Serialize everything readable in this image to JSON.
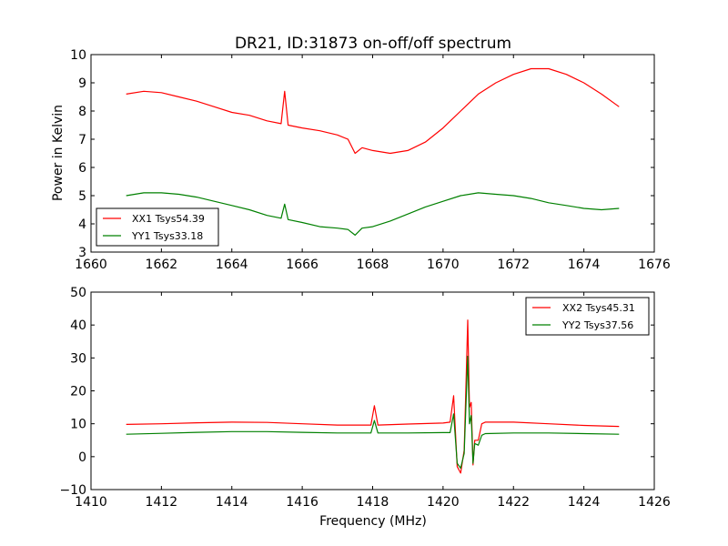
{
  "chart_data": [
    {
      "type": "line",
      "title": "DR21, ID:31873 on-off/off spectrum",
      "xlabel": "",
      "ylabel": "Power in Kelvin",
      "xlim": [
        1660,
        1676
      ],
      "ylim": [
        3,
        10
      ],
      "xticks": [
        "1660",
        "1662",
        "1664",
        "1666",
        "1668",
        "1670",
        "1672",
        "1674",
        "1676"
      ],
      "yticks": [
        "3",
        "4",
        "5",
        "6",
        "7",
        "8",
        "9",
        "10"
      ],
      "legend": "lower-left",
      "grid": false,
      "series": [
        {
          "name": "XX1 Tsys54.39",
          "color": "#ff0000",
          "x": [
            1661.0,
            1661.5,
            1662.0,
            1662.5,
            1663.0,
            1663.5,
            1664.0,
            1664.5,
            1665.0,
            1665.4,
            1665.5,
            1665.6,
            1666.0,
            1666.5,
            1667.0,
            1667.3,
            1667.5,
            1667.7,
            1668.0,
            1668.5,
            1669.0,
            1669.5,
            1670.0,
            1670.5,
            1671.0,
            1671.5,
            1672.0,
            1672.5,
            1673.0,
            1673.5,
            1674.0,
            1674.5,
            1675.0
          ],
          "y": [
            8.6,
            8.7,
            8.65,
            8.5,
            8.35,
            8.15,
            7.95,
            7.85,
            7.65,
            7.55,
            8.7,
            7.5,
            7.4,
            7.3,
            7.15,
            7.0,
            6.5,
            6.7,
            6.6,
            6.5,
            6.6,
            6.9,
            7.4,
            8.0,
            8.6,
            9.0,
            9.3,
            9.5,
            9.5,
            9.3,
            9.0,
            8.6,
            8.15
          ]
        },
        {
          "name": "YY1 Tsys33.18",
          "color": "#008000",
          "x": [
            1661.0,
            1661.5,
            1662.0,
            1662.5,
            1663.0,
            1663.5,
            1664.0,
            1664.5,
            1665.0,
            1665.4,
            1665.5,
            1665.6,
            1666.0,
            1666.5,
            1667.0,
            1667.3,
            1667.5,
            1667.7,
            1668.0,
            1668.5,
            1669.0,
            1669.5,
            1670.0,
            1670.5,
            1671.0,
            1671.5,
            1672.0,
            1672.5,
            1673.0,
            1673.5,
            1674.0,
            1674.5,
            1675.0
          ],
          "y": [
            5.0,
            5.1,
            5.1,
            5.05,
            4.95,
            4.8,
            4.65,
            4.5,
            4.3,
            4.2,
            4.7,
            4.15,
            4.05,
            3.9,
            3.85,
            3.8,
            3.6,
            3.85,
            3.9,
            4.1,
            4.35,
            4.6,
            4.8,
            5.0,
            5.1,
            5.05,
            5.0,
            4.9,
            4.75,
            4.65,
            4.55,
            4.5,
            4.55
          ]
        }
      ]
    },
    {
      "type": "line",
      "title": "",
      "xlabel": "Frequency (MHz)",
      "ylabel": "",
      "xlim": [
        1410,
        1426
      ],
      "ylim": [
        -10,
        50
      ],
      "xticks": [
        "1410",
        "1412",
        "1414",
        "1416",
        "1418",
        "1420",
        "1422",
        "1424",
        "1426"
      ],
      "yticks": [
        "−10",
        "0",
        "10",
        "20",
        "30",
        "40",
        "50"
      ],
      "legend": "top-right",
      "grid": false,
      "series": [
        {
          "name": "XX2 Tsys45.31",
          "color": "#ff0000",
          "x": [
            1411.0,
            1412.0,
            1413.0,
            1414.0,
            1415.0,
            1416.0,
            1417.0,
            1417.95,
            1418.05,
            1418.15,
            1419.0,
            1420.0,
            1420.2,
            1420.3,
            1420.4,
            1420.5,
            1420.6,
            1420.7,
            1420.75,
            1420.8,
            1420.85,
            1420.9,
            1421.0,
            1421.1,
            1421.2,
            1422.0,
            1423.0,
            1424.0,
            1425.0
          ],
          "y": [
            9.8,
            10.0,
            10.3,
            10.5,
            10.4,
            10.0,
            9.6,
            9.6,
            15.5,
            9.6,
            9.9,
            10.2,
            10.5,
            18.5,
            -3.0,
            -5.0,
            2.0,
            41.5,
            15.0,
            16.5,
            -2.5,
            5.0,
            5.0,
            10.0,
            10.5,
            10.5,
            10.0,
            9.5,
            9.2
          ]
        },
        {
          "name": "YY2 Tsys37.56",
          "color": "#008000",
          "x": [
            1411.0,
            1412.0,
            1413.0,
            1414.0,
            1415.0,
            1416.0,
            1417.0,
            1417.95,
            1418.05,
            1418.15,
            1419.0,
            1420.0,
            1420.2,
            1420.3,
            1420.4,
            1420.5,
            1420.6,
            1420.7,
            1420.75,
            1420.8,
            1420.85,
            1420.9,
            1421.0,
            1421.1,
            1421.2,
            1422.0,
            1423.0,
            1424.0,
            1425.0
          ],
          "y": [
            6.8,
            7.1,
            7.4,
            7.6,
            7.6,
            7.4,
            7.2,
            7.2,
            11.0,
            7.2,
            7.2,
            7.3,
            7.3,
            13.0,
            -2.0,
            -3.5,
            1.0,
            30.5,
            10.0,
            12.5,
            -2.0,
            4.0,
            3.5,
            6.5,
            7.0,
            7.2,
            7.2,
            7.0,
            6.8
          ]
        }
      ]
    }
  ]
}
